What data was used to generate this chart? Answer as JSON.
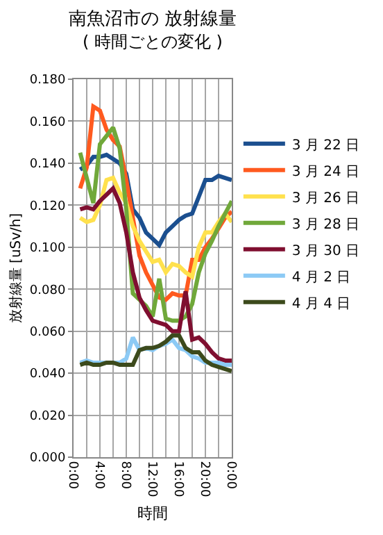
{
  "chart_data": {
    "type": "line",
    "title": "南魚沼市の 放射線量",
    "subtitle": "( 時間ごとの変化 )",
    "xlabel": "時間",
    "ylabel": "放射線量 [uSv/h]",
    "x": [
      1,
      2,
      3,
      4,
      5,
      6,
      7,
      8,
      9,
      10,
      11,
      12,
      13,
      14,
      15,
      16,
      17,
      18,
      19,
      20,
      21,
      22,
      23,
      24
    ],
    "xlim": [
      0,
      24
    ],
    "xticks": [
      {
        "value": 0,
        "label": "0:00"
      },
      {
        "value": 2,
        "label": null
      },
      {
        "value": 4,
        "label": "4:00"
      },
      {
        "value": 6,
        "label": null
      },
      {
        "value": 8,
        "label": "8:00"
      },
      {
        "value": 10,
        "label": null
      },
      {
        "value": 12,
        "label": "12:00"
      },
      {
        "value": 14,
        "label": null
      },
      {
        "value": 16,
        "label": "16:00"
      },
      {
        "value": 18,
        "label": null
      },
      {
        "value": 20,
        "label": "20:00"
      },
      {
        "value": 22,
        "label": null
      },
      {
        "value": 24,
        "label": "0:00"
      }
    ],
    "ylim": [
      0,
      0.18
    ],
    "yticks": [
      {
        "value": 0,
        "label": "0.000"
      },
      {
        "value": 0.02,
        "label": "0.020"
      },
      {
        "value": 0.04,
        "label": "0.040"
      },
      {
        "value": 0.06,
        "label": "0.060"
      },
      {
        "value": 0.08,
        "label": "0.080"
      },
      {
        "value": 0.1,
        "label": "0.100"
      },
      {
        "value": 0.12,
        "label": "0.120"
      },
      {
        "value": 0.14,
        "label": "0.140"
      },
      {
        "value": 0.16,
        "label": "0.160"
      },
      {
        "value": 0.18,
        "label": "0.180"
      }
    ],
    "grid": true,
    "legend": "right",
    "marker": "none",
    "line_style": "solid",
    "series": [
      {
        "name": "3 月 22 日",
        "color": "#1b4f8f",
        "values": [
          0.137,
          0.139,
          0.143,
          0.143,
          0.144,
          0.142,
          0.14,
          0.135,
          0.118,
          0.114,
          0.107,
          0.104,
          0.101,
          0.107,
          0.11,
          0.113,
          0.115,
          0.116,
          0.124,
          0.132,
          0.132,
          0.134,
          0.133,
          0.132
        ]
      },
      {
        "name": "3 月 24 日",
        "color": "#ff5a1f",
        "values": [
          0.128,
          0.138,
          0.167,
          0.165,
          0.156,
          0.151,
          0.148,
          0.132,
          0.114,
          0.096,
          0.088,
          0.082,
          0.076,
          0.075,
          0.078,
          0.077,
          0.077,
          0.094,
          0.094,
          0.1,
          0.104,
          0.109,
          0.114,
          0.117
        ]
      },
      {
        "name": "3 月 26 日",
        "color": "#ffe14d",
        "values": [
          0.114,
          0.112,
          0.113,
          0.12,
          0.132,
          0.133,
          0.126,
          0.121,
          0.11,
          0.103,
          0.098,
          0.093,
          0.094,
          0.088,
          0.092,
          0.091,
          0.088,
          0.086,
          0.1,
          0.107,
          0.107,
          0.112,
          0.116,
          0.112
        ]
      },
      {
        "name": "3 月 28 日",
        "color": "#70a83a",
        "values": [
          0.145,
          0.133,
          0.121,
          0.149,
          0.153,
          0.157,
          0.147,
          0.118,
          0.078,
          0.075,
          0.072,
          0.067,
          0.085,
          0.066,
          0.065,
          0.065,
          0.067,
          0.073,
          0.088,
          0.097,
          0.103,
          0.11,
          0.116,
          0.122
        ]
      },
      {
        "name": "3 月 30 日",
        "color": "#7f0f30",
        "values": [
          0.118,
          0.119,
          0.118,
          0.122,
          0.125,
          0.128,
          0.121,
          0.107,
          0.088,
          0.076,
          0.07,
          0.065,
          0.064,
          0.063,
          0.06,
          0.06,
          0.079,
          0.056,
          0.057,
          0.054,
          0.05,
          0.047,
          0.046,
          0.046
        ]
      },
      {
        "name": "4 月 2 日",
        "color": "#8ccaf5",
        "values": [
          0.045,
          0.046,
          0.045,
          0.045,
          0.045,
          0.045,
          0.045,
          0.047,
          0.057,
          0.051,
          0.052,
          0.051,
          0.053,
          0.054,
          0.056,
          0.052,
          0.051,
          0.048,
          0.047,
          0.045,
          0.045,
          0.045,
          0.044,
          0.044
        ]
      },
      {
        "name": "4 月 4 日",
        "color": "#3c4a1c",
        "values": [
          0.044,
          0.045,
          0.044,
          0.044,
          0.045,
          0.045,
          0.044,
          0.044,
          0.044,
          0.051,
          0.052,
          0.052,
          0.053,
          0.055,
          0.058,
          0.058,
          0.052,
          0.05,
          0.05,
          0.046,
          0.044,
          0.043,
          0.042,
          0.041
        ]
      }
    ]
  }
}
